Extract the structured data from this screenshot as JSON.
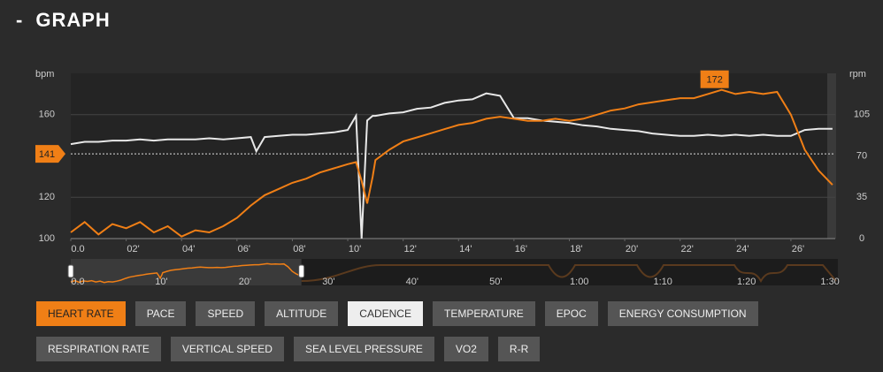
{
  "title": "GRAPH",
  "chart_data": {
    "type": "line",
    "y_label": "bpm",
    "y2_label": "rpm",
    "x": [
      0,
      0.5,
      1,
      1.5,
      2,
      2.5,
      3,
      3.5,
      4,
      4.5,
      5,
      5.5,
      6,
      6.5,
      6.7,
      7,
      7.5,
      8,
      8.5,
      9,
      9.5,
      10,
      10.3,
      10.5,
      10.7,
      10.9,
      11,
      11.5,
      12,
      12.5,
      13,
      13.5,
      14,
      14.5,
      15,
      15.5,
      16,
      16.5,
      17,
      17.5,
      18,
      18.5,
      19,
      19.5,
      20,
      20.5,
      21,
      21.5,
      22,
      22.5,
      23,
      23.5,
      24,
      24.5,
      25,
      25.5,
      26,
      26.5,
      27,
      27.5
    ],
    "series": [
      {
        "name": "HEART RATE",
        "color": "#f07f16",
        "values": [
          103,
          108,
          102,
          107,
          105,
          108,
          103,
          106,
          101,
          104,
          103,
          106,
          110,
          116,
          118,
          121,
          124,
          127,
          129,
          132,
          134,
          136,
          137,
          128,
          117,
          130,
          138,
          143,
          147,
          149,
          151,
          153,
          155,
          156,
          158,
          159,
          158,
          157,
          157,
          158,
          157,
          158,
          160,
          162,
          163,
          165,
          166,
          167,
          168,
          168,
          170,
          172,
          170,
          171,
          170,
          171,
          160,
          143,
          133,
          126
        ]
      },
      {
        "name": "CADENCE",
        "color": "#e8e8e8",
        "axis": "y2",
        "values": [
          80,
          82,
          82,
          83,
          83,
          84,
          83,
          84,
          84,
          84,
          85,
          84,
          85,
          86,
          74,
          86,
          87,
          88,
          88,
          89,
          90,
          92,
          104,
          0,
          100,
          104,
          104,
          106,
          107,
          110,
          111,
          115,
          117,
          118,
          123,
          121,
          102,
          102,
          100,
          99,
          98,
          96,
          95,
          93,
          92,
          91,
          89,
          88,
          87,
          87,
          88,
          87,
          88,
          87,
          88,
          87,
          87,
          92,
          93,
          93
        ]
      }
    ],
    "xlim": [
      0,
      27.6
    ],
    "xticks": [
      {
        "value": 0,
        "label": "0.0"
      },
      {
        "value": 2,
        "label": "02'"
      },
      {
        "value": 4,
        "label": "04'"
      },
      {
        "value": 6,
        "label": "06'"
      },
      {
        "value": 8,
        "label": "08'"
      },
      {
        "value": 10,
        "label": "10'"
      },
      {
        "value": 12,
        "label": "12'"
      },
      {
        "value": 14,
        "label": "14'"
      },
      {
        "value": 16,
        "label": "16'"
      },
      {
        "value": 18,
        "label": "18'"
      },
      {
        "value": 20,
        "label": "20'"
      },
      {
        "value": 22,
        "label": "22'"
      },
      {
        "value": 24,
        "label": "24'"
      },
      {
        "value": 26,
        "label": "26'"
      }
    ],
    "ylim": [
      100,
      180
    ],
    "yticks": [
      100,
      120,
      160
    ],
    "y2lim": [
      0,
      140
    ],
    "y2ticks": [
      0,
      35,
      70,
      105
    ],
    "marker": 141,
    "peak": 172,
    "grid": true,
    "overview": {
      "xlim": [
        0,
        92
      ],
      "xticks": [
        {
          "value": 0,
          "label": "0.0"
        },
        {
          "value": 10,
          "label": "10'"
        },
        {
          "value": 20,
          "label": "20'"
        },
        {
          "value": 30,
          "label": "30'"
        },
        {
          "value": 40,
          "label": "40'"
        },
        {
          "value": 50,
          "label": "50'"
        },
        {
          "value": 60,
          "label": "1:00"
        },
        {
          "value": 70,
          "label": "1:10"
        },
        {
          "value": 80,
          "label": "1:20"
        },
        {
          "value": 90,
          "label": "1:30"
        }
      ]
    }
  },
  "buttons": [
    {
      "label": "HEART RATE",
      "state": "active"
    },
    {
      "label": "PACE",
      "state": "off"
    },
    {
      "label": "SPEED",
      "state": "off"
    },
    {
      "label": "ALTITUDE",
      "state": "off"
    },
    {
      "label": "CADENCE",
      "state": "selected"
    },
    {
      "label": "TEMPERATURE",
      "state": "off"
    },
    {
      "label": "EPOC",
      "state": "off"
    },
    {
      "label": "ENERGY CONSUMPTION",
      "state": "off"
    },
    {
      "label": "RESPIRATION RATE",
      "state": "off"
    },
    {
      "label": "VERTICAL SPEED",
      "state": "off"
    },
    {
      "label": "SEA LEVEL PRESSURE",
      "state": "off"
    },
    {
      "label": "VO2",
      "state": "off"
    },
    {
      "label": "R-R",
      "state": "off"
    }
  ]
}
